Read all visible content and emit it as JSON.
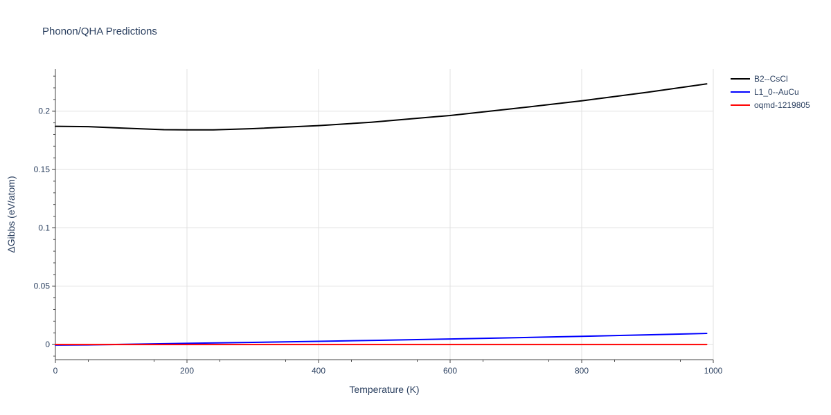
{
  "chart_data": {
    "type": "line",
    "title": "Phonon/QHA Predictions",
    "xlabel": "Temperature (K)",
    "ylabel": "ΔGibbs (eV/atom)",
    "xlim": [
      0,
      1000
    ],
    "ylim": [
      -0.013,
      0.236
    ],
    "x_ticks": [
      0,
      200,
      400,
      600,
      800,
      1000
    ],
    "x_tick_labels": [
      "0",
      "200",
      "400",
      "600",
      "800",
      "1000"
    ],
    "y_ticks": [
      0,
      0.05,
      0.1,
      0.15,
      0.2
    ],
    "y_tick_labels": [
      "0",
      "0.05",
      "0.1",
      "0.15",
      "0.2"
    ],
    "grid": true,
    "legend_position": "top-right outside",
    "series": [
      {
        "name": "B2--CsCl",
        "color": "#000000",
        "x": [
          0,
          50,
          100,
          165,
          200,
          240,
          300,
          400,
          480,
          600,
          700,
          800,
          900,
          990
        ],
        "y": [
          0.187,
          0.1867,
          0.1855,
          0.1841,
          0.184,
          0.184,
          0.185,
          0.1876,
          0.1905,
          0.1963,
          0.2024,
          0.2089,
          0.2162,
          0.2234
        ]
      },
      {
        "name": "L1_0--AuCu",
        "color": "#0000ff",
        "x": [
          0,
          50,
          100,
          200,
          300,
          400,
          500,
          600,
          700,
          800,
          900,
          990
        ],
        "y": [
          -0.0005,
          -0.0003,
          0.0001,
          0.001,
          0.0018,
          0.0027,
          0.0037,
          0.0047,
          0.0058,
          0.007,
          0.0083,
          0.0095
        ]
      },
      {
        "name": "oqmd-1219805",
        "color": "#ff0000",
        "x": [
          0,
          200,
          400,
          600,
          800,
          990
        ],
        "y": [
          0,
          0,
          0,
          0,
          0,
          0
        ]
      }
    ]
  }
}
